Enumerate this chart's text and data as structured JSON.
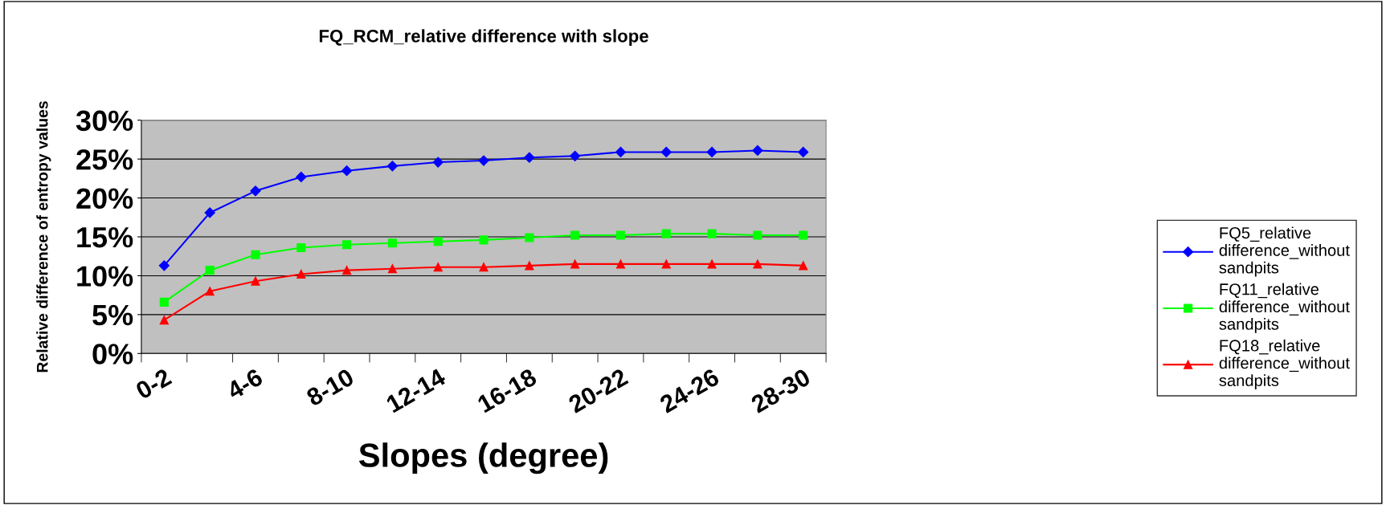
{
  "chart_data": {
    "type": "line",
    "title": "FQ_RCM_relative difference with slope",
    "xlabel": "Slopes (degree)",
    "ylabel": "Relative difference of entropy values",
    "categories": [
      "0-2",
      null,
      "4-6",
      null,
      "8-10",
      null,
      "12-14",
      null,
      "16-18",
      null,
      "20-22",
      null,
      "24-26",
      null,
      "28-30"
    ],
    "series": [
      {
        "name": "FQ5_relative difference_without sandpits",
        "color": "#0000ff",
        "marker": "diamond",
        "values": [
          11.3,
          18.1,
          20.9,
          22.7,
          23.5,
          24.1,
          24.6,
          24.8,
          25.2,
          25.4,
          25.9,
          25.9,
          25.9,
          26.1,
          25.9
        ]
      },
      {
        "name": "FQ11_relative difference_without sandpits",
        "color": "#00ff00",
        "marker": "square",
        "values": [
          6.6,
          10.7,
          12.7,
          13.6,
          14.0,
          14.2,
          14.4,
          14.6,
          14.9,
          15.2,
          15.2,
          15.4,
          15.4,
          15.2,
          15.2
        ]
      },
      {
        "name": "FQ18_relative difference_without sandpits",
        "color": "#ff0000",
        "marker": "triangle",
        "values": [
          4.3,
          8.0,
          9.3,
          10.2,
          10.7,
          10.9,
          11.1,
          11.1,
          11.3,
          11.5,
          11.5,
          11.5,
          11.5,
          11.5,
          11.3
        ]
      }
    ],
    "ylim": [
      0,
      30
    ],
    "yticks": [
      {
        "value": 0,
        "label": "0%"
      },
      {
        "value": 5,
        "label": "5%"
      },
      {
        "value": 10,
        "label": "10%"
      },
      {
        "value": 15,
        "label": "15%"
      },
      {
        "value": 20,
        "label": "20%"
      },
      {
        "value": 25,
        "label": "25%"
      },
      {
        "value": 30,
        "label": "30%"
      }
    ],
    "grid": "y",
    "legend": "right",
    "line_style": "solid"
  }
}
